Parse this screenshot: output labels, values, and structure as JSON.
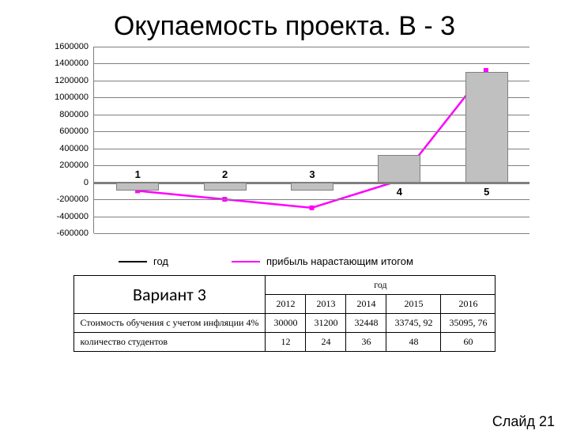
{
  "title": "Окупаемость проекта. В - 3",
  "chart": {
    "type": "bar+line",
    "ylim": [
      -600000,
      1600000
    ],
    "ytick_step": 200000,
    "yticks": [
      1600000,
      1400000,
      1200000,
      1000000,
      800000,
      600000,
      400000,
      200000,
      0,
      -200000,
      -400000,
      -600000
    ],
    "categories": [
      "1",
      "2",
      "3",
      "4",
      "5"
    ],
    "bar_values": [
      -100000,
      -100000,
      -100000,
      320000,
      1300000
    ],
    "bar_color": "#c0c0c0",
    "bar_border": "#808080",
    "line_values": [
      -100000,
      -200000,
      -300000,
      20000,
      1320000
    ],
    "line_color": "#ff00ff",
    "series1_color": "#000000",
    "series1_label": "год",
    "series2_label": "прибыль нарастающим итогом",
    "grid_color": "#7f7f7f",
    "background_color": "#ffffff",
    "tick_fontsize": 11,
    "cat_fontsize": 13
  },
  "legend": {
    "s1": "год",
    "s2": "прибыль нарастающим итогом"
  },
  "table": {
    "variant_label": "Вариант 3",
    "year_header": "год",
    "columns": [
      "2012",
      "2013",
      "2014",
      "2015",
      "2016"
    ],
    "rows": [
      {
        "label": "Стоимость обучения с учетом инфляции 4%",
        "cells": [
          "30000",
          "31200",
          "32448",
          "33745, 92",
          "35095, 76"
        ]
      },
      {
        "label": "количество студентов",
        "cells": [
          "12",
          "24",
          "36",
          "48",
          "60"
        ]
      }
    ]
  },
  "footer": {
    "slide": "Слайд 21"
  }
}
